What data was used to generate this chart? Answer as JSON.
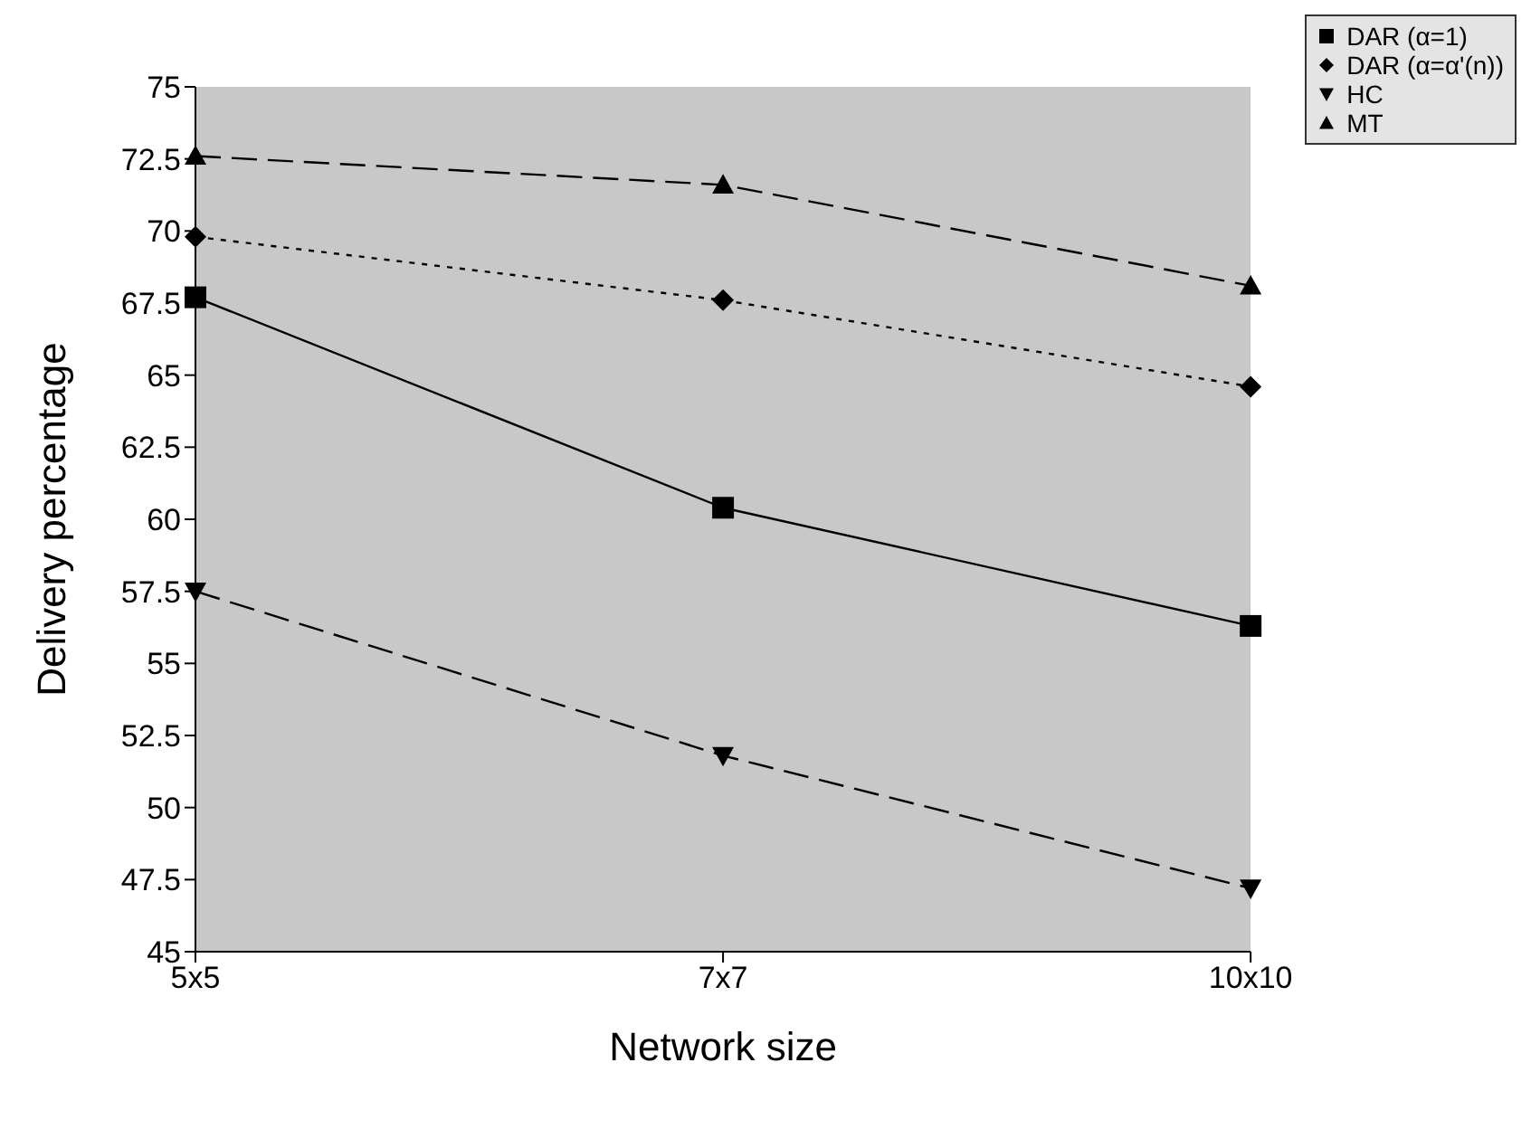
{
  "chart_data": {
    "type": "line",
    "xlabel": "Network size",
    "ylabel": "Delivery percentage",
    "categories": [
      "5x5",
      "7x7",
      "10x10"
    ],
    "series": [
      {
        "name": "DAR (α=1)",
        "color": "#000000",
        "values": [
          67.7,
          60.4,
          56.3
        ],
        "marker": "square",
        "line_style": "solid"
      },
      {
        "name": "DAR (α=α'(n))",
        "color": "#000000",
        "values": [
          69.8,
          67.6,
          64.6
        ],
        "marker": "diamond",
        "line_style": "dotted"
      },
      {
        "name": "HC",
        "color": "#000000",
        "values": [
          57.5,
          51.8,
          47.2
        ],
        "marker": "triangle-down",
        "line_style": "dashed"
      },
      {
        "name": "MT",
        "color": "#000000",
        "values": [
          72.6,
          71.6,
          68.1
        ],
        "marker": "triangle",
        "line_style": "dashed"
      }
    ],
    "ylim": [
      45,
      75
    ],
    "yticks": [
      45,
      47.5,
      50,
      52.5,
      55,
      57.5,
      60,
      62.5,
      65,
      67.5,
      70,
      72.5,
      75
    ],
    "legend": "top right"
  }
}
